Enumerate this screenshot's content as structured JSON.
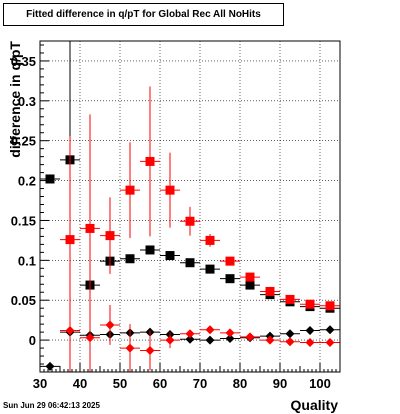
{
  "title": "Fitted difference in q/pT for Global Rec All NoHits",
  "timestamp": "Sun Jun 29 06:42:13 2025",
  "chart_data": {
    "type": "scatter",
    "xlabel": "Quality",
    "ylabel": "difference in q/pT",
    "xlim": [
      30,
      105
    ],
    "ylim": [
      -0.04,
      0.375
    ],
    "x_ticks": [
      30,
      40,
      50,
      60,
      70,
      80,
      90,
      100
    ],
    "x_tick_labels": [
      "30",
      "40",
      "50",
      "60",
      "70",
      "80",
      "90",
      "100"
    ],
    "y_ticks": [
      0,
      0.05,
      0.1,
      0.15,
      0.2,
      0.25,
      0.3,
      0.35
    ],
    "y_tick_labels": [
      "0",
      "0.05",
      "0.1",
      "0.15",
      "0.2",
      "0.25",
      "0.3",
      "0.35"
    ],
    "grid": true,
    "x_err": 2.5,
    "series": [
      {
        "marker": "square",
        "color": "#000000",
        "points": [
          {
            "x": 32.5,
            "y": 0.202,
            "err": 0.0
          },
          {
            "x": 37.5,
            "y": 0.226,
            "err": 0.18
          },
          {
            "x": 42.5,
            "y": 0.069,
            "err": 0.01
          },
          {
            "x": 47.5,
            "y": 0.099,
            "err": 0.006
          },
          {
            "x": 52.5,
            "y": 0.102,
            "err": 0.005
          },
          {
            "x": 57.5,
            "y": 0.113,
            "err": 0.004
          },
          {
            "x": 62.5,
            "y": 0.106,
            "err": 0.003
          },
          {
            "x": 67.5,
            "y": 0.097,
            "err": 0.003
          },
          {
            "x": 72.5,
            "y": 0.089,
            "err": 0.003
          },
          {
            "x": 77.5,
            "y": 0.077,
            "err": 0.003
          },
          {
            "x": 82.5,
            "y": 0.069,
            "err": 0.003
          },
          {
            "x": 87.5,
            "y": 0.057,
            "err": 0.003
          },
          {
            "x": 92.5,
            "y": 0.048,
            "err": 0.003
          },
          {
            "x": 97.5,
            "y": 0.042,
            "err": 0.003
          },
          {
            "x": 102.5,
            "y": 0.04,
            "err": 0.003
          }
        ]
      },
      {
        "marker": "square",
        "color": "#ff0000",
        "points": [
          {
            "x": 37.5,
            "y": 0.126,
            "err": 0.13
          },
          {
            "x": 42.5,
            "y": 0.14,
            "err": 0.143
          },
          {
            "x": 47.5,
            "y": 0.131,
            "err": 0.048
          },
          {
            "x": 52.5,
            "y": 0.188,
            "err": 0.06
          },
          {
            "x": 57.5,
            "y": 0.224,
            "err": 0.094
          },
          {
            "x": 62.5,
            "y": 0.188,
            "err": 0.047
          },
          {
            "x": 67.5,
            "y": 0.149,
            "err": 0.018
          },
          {
            "x": 72.5,
            "y": 0.125,
            "err": 0.008
          },
          {
            "x": 77.5,
            "y": 0.099,
            "err": 0.005
          },
          {
            "x": 82.5,
            "y": 0.079,
            "err": 0.004
          },
          {
            "x": 87.5,
            "y": 0.061,
            "err": 0.004
          },
          {
            "x": 92.5,
            "y": 0.051,
            "err": 0.003
          },
          {
            "x": 97.5,
            "y": 0.045,
            "err": 0.003
          },
          {
            "x": 102.5,
            "y": 0.043,
            "err": 0.003
          }
        ]
      },
      {
        "marker": "diamond",
        "color": "#000000",
        "points": [
          {
            "x": 32.5,
            "y": -0.033,
            "err": 0.0
          },
          {
            "x": 37.5,
            "y": 0.01,
            "err": 0.004
          },
          {
            "x": 42.5,
            "y": 0.006,
            "err": 0.002
          },
          {
            "x": 47.5,
            "y": 0.007,
            "err": 0.002
          },
          {
            "x": 52.5,
            "y": 0.009,
            "err": 0.002
          },
          {
            "x": 57.5,
            "y": 0.01,
            "err": 0.002
          },
          {
            "x": 62.5,
            "y": 0.007,
            "err": 0.002
          },
          {
            "x": 67.5,
            "y": 0.001,
            "err": 0.002
          },
          {
            "x": 72.5,
            "y": 0.0,
            "err": 0.002
          },
          {
            "x": 77.5,
            "y": 0.002,
            "err": 0.002
          },
          {
            "x": 82.5,
            "y": 0.003,
            "err": 0.002
          },
          {
            "x": 87.5,
            "y": 0.005,
            "err": 0.002
          },
          {
            "x": 92.5,
            "y": 0.008,
            "err": 0.002
          },
          {
            "x": 97.5,
            "y": 0.012,
            "err": 0.002
          },
          {
            "x": 102.5,
            "y": 0.013,
            "err": 0.002
          }
        ]
      },
      {
        "marker": "diamond",
        "color": "#ff0000",
        "points": [
          {
            "x": 37.5,
            "y": 0.012,
            "err": 0.11
          },
          {
            "x": 42.5,
            "y": 0.003,
            "err": 0.07
          },
          {
            "x": 47.5,
            "y": 0.019,
            "err": 0.025
          },
          {
            "x": 52.5,
            "y": -0.01,
            "err": 0.03
          },
          {
            "x": 57.5,
            "y": -0.013,
            "err": 0.025
          },
          {
            "x": 62.5,
            "y": 0.0,
            "err": 0.01
          },
          {
            "x": 67.5,
            "y": 0.008,
            "err": 0.004
          },
          {
            "x": 72.5,
            "y": 0.013,
            "err": 0.003
          },
          {
            "x": 77.5,
            "y": 0.009,
            "err": 0.002
          },
          {
            "x": 82.5,
            "y": 0.004,
            "err": 0.002
          },
          {
            "x": 87.5,
            "y": 0.0,
            "err": 0.002
          },
          {
            "x": 92.5,
            "y": -0.002,
            "err": 0.002
          },
          {
            "x": 97.5,
            "y": -0.003,
            "err": 0.002
          },
          {
            "x": 102.5,
            "y": -0.003,
            "err": 0.002
          }
        ]
      }
    ]
  }
}
